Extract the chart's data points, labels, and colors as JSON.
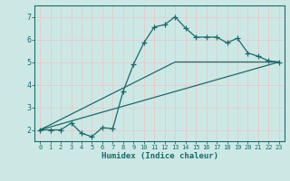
{
  "xlabel": "Humidex (Indice chaleur)",
  "bg_color": "#cce8e5",
  "line_color": "#1a6b6b",
  "grid_color": "#e8c8c8",
  "xlim": [
    -0.5,
    23.5
  ],
  "ylim": [
    1.5,
    7.5
  ],
  "yticks": [
    2,
    3,
    4,
    5,
    6,
    7
  ],
  "xticks": [
    0,
    1,
    2,
    3,
    4,
    5,
    6,
    7,
    8,
    9,
    10,
    11,
    12,
    13,
    14,
    15,
    16,
    17,
    18,
    19,
    20,
    21,
    22,
    23
  ],
  "line1_x": [
    0,
    1,
    2,
    3,
    4,
    5,
    6,
    7,
    8,
    9,
    10,
    11,
    12,
    13,
    14,
    15,
    16,
    17,
    18,
    19,
    20,
    21,
    22,
    23
  ],
  "line1_y": [
    2.0,
    2.0,
    2.0,
    2.3,
    1.85,
    1.7,
    2.1,
    2.05,
    3.7,
    4.9,
    5.85,
    6.55,
    6.65,
    7.0,
    6.5,
    6.1,
    6.1,
    6.1,
    5.85,
    6.05,
    5.4,
    5.25,
    5.05,
    5.0
  ],
  "line2_x": [
    0,
    13,
    23
  ],
  "line2_y": [
    2.0,
    5.0,
    5.0
  ],
  "line3_x": [
    0,
    23
  ],
  "line3_y": [
    2.0,
    5.0
  ]
}
